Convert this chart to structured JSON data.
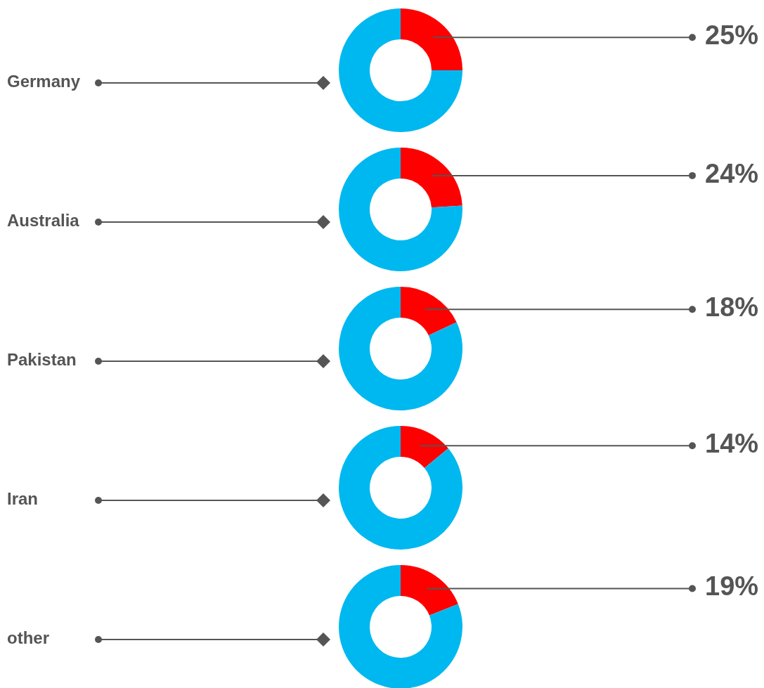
{
  "chart_data": [
    {
      "type": "donut",
      "annotations": [
        "Germany"
      ],
      "categories": [
        null,
        null
      ],
      "values": [
        25,
        75
      ],
      "colors": [
        "#ff0000",
        "#00b8f0"
      ],
      "value_labels": [
        "25%",
        null
      ]
    },
    {
      "type": "donut",
      "annotations": [
        "Australia"
      ],
      "categories": [
        null,
        null
      ],
      "values": [
        24,
        76
      ],
      "colors": [
        "#ff0000",
        "#00b8f0"
      ],
      "value_labels": [
        "24%",
        null
      ]
    },
    {
      "type": "donut",
      "annotations": [
        "Pakistan"
      ],
      "categories": [
        null,
        null
      ],
      "values": [
        18,
        82
      ],
      "colors": [
        "#ff0000",
        "#00b8f0"
      ],
      "value_labels": [
        "18%",
        null
      ]
    },
    {
      "type": "donut",
      "annotations": [
        "Iran"
      ],
      "categories": [
        null,
        null
      ],
      "values": [
        14,
        86
      ],
      "colors": [
        "#ff0000",
        "#00b8f0"
      ],
      "value_labels": [
        "14%",
        null
      ]
    },
    {
      "type": "donut",
      "annotations": [
        "other"
      ],
      "categories": [
        null,
        null
      ],
      "values": [
        19,
        81
      ],
      "colors": [
        "#ff0000",
        "#00b8f0"
      ],
      "value_labels": [
        "19%",
        null
      ]
    }
  ]
}
